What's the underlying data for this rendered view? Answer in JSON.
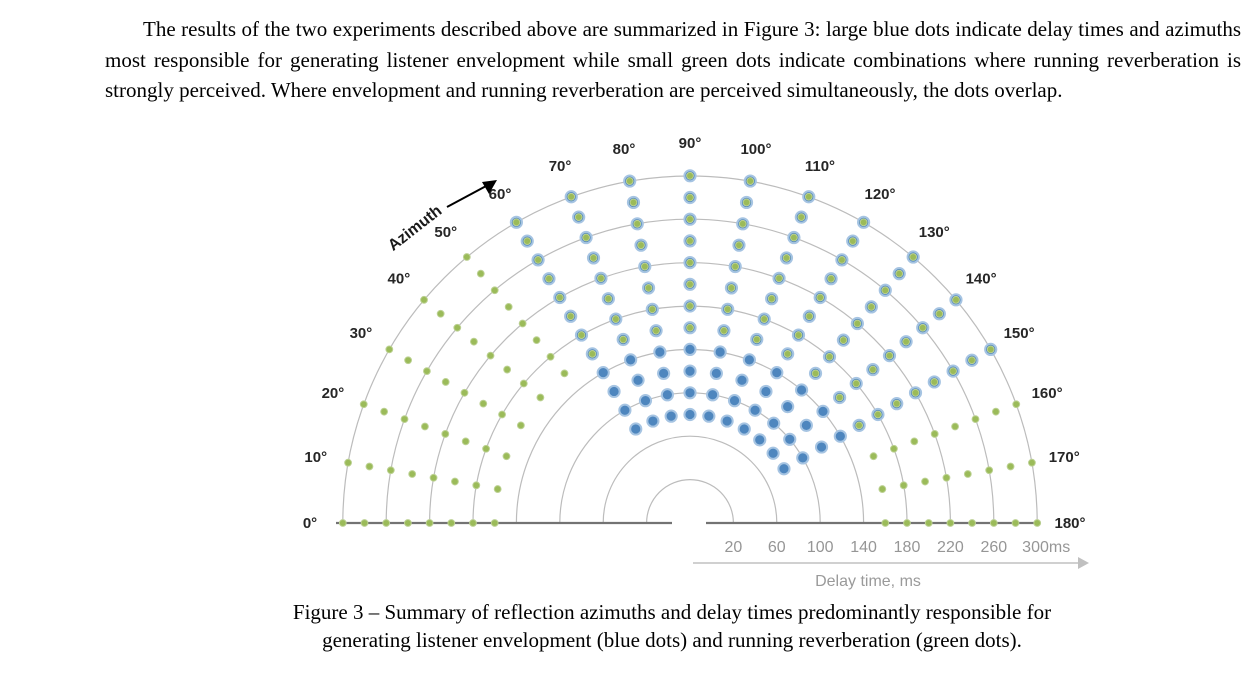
{
  "paragraph": "The results of the two experiments described above are summarized in Figure 3: large blue dots indicate delay times and azimuths most responsible for generating listener envelopment while small green dots indicate combinations where running reverberation is strongly perceived. Where envelopment and running reverberation are perceived simultaneously, the dots overlap.",
  "caption": {
    "line1": "Figure 3 – Summary of reflection azimuths and delay times predominantly responsible for",
    "line2": "generating listener envelopment (blue dots) and running reverberation (green dots)."
  },
  "chart_data": {
    "type": "scatter",
    "subtype": "half-polar-scatter",
    "azimuth_axis_label": "Azimuth",
    "delay_axis_label": "Delay time, ms",
    "delay_rings_ms": [
      20,
      60,
      100,
      140,
      180,
      220,
      260,
      300
    ],
    "delay_tick_labels": [
      "20",
      "60",
      "100",
      "140",
      "180",
      "220",
      "260",
      "300ms"
    ],
    "azimuth_tick_degrees": [
      0,
      10,
      20,
      30,
      40,
      50,
      60,
      70,
      80,
      90,
      100,
      110,
      120,
      130,
      140,
      150,
      160,
      170,
      180
    ],
    "azimuth_tick_labels": [
      "0°",
      "10°",
      "20°",
      "30°",
      "40°",
      "50°",
      "60°",
      "70°",
      "80°",
      "90°",
      "100°",
      "110°",
      "120°",
      "130°",
      "140°",
      "150°",
      "160°",
      "170°",
      "180°"
    ],
    "series": [
      {
        "name": "listener envelopment (blue dots)",
        "marker": "large-blue-dot",
        "azimuths_deg": [
          60,
          70,
          80,
          90,
          100,
          110,
          120,
          130,
          140,
          150
        ],
        "delays_ms": [
          80,
          100,
          120,
          140,
          160,
          180,
          200,
          220,
          240,
          260,
          280,
          300
        ],
        "note": "dot at every azimuth/delay combination of these lists"
      },
      {
        "name": "running reverberation (green dots)",
        "marker": "small-green-dot",
        "azimuths_deg": [
          0,
          10,
          20,
          30,
          40,
          50,
          60,
          70,
          80,
          90,
          100,
          110,
          120,
          130,
          140,
          150,
          160,
          170,
          180
        ],
        "delays_ms": [
          160,
          180,
          200,
          220,
          240,
          260,
          280,
          300
        ],
        "note": "dot at every azimuth/delay combination; where both series coincide the small green dot overlaps the large blue dot"
      }
    ],
    "colors": {
      "blue_fill": "#4e86be",
      "blue_edge": "#a6c4e2",
      "green_fill": "#9bbb59",
      "green_edge": "#bcd193",
      "ring_grid": "#bcbcbc",
      "axis_line": "#737373",
      "tick_text": "#969696",
      "label_text": "#262626"
    },
    "legend_position": "none",
    "grid": "semicircular rings only, no radial spokes"
  }
}
